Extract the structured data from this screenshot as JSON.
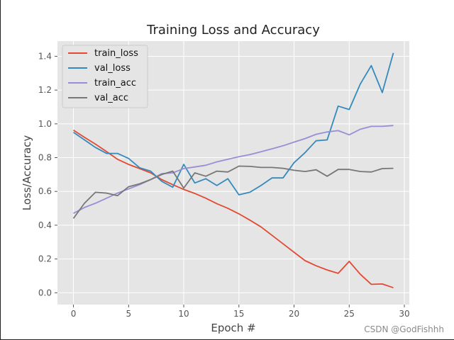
{
  "chart_data": {
    "type": "line",
    "title": "Training Loss and Accuracy",
    "xlabel": "Epoch #",
    "ylabel": "Loss/Accuracy",
    "xlim": [
      -1.45,
      30.45
    ],
    "ylim": [
      -0.07,
      1.49
    ],
    "xticks": [
      "0",
      "5",
      "10",
      "15",
      "20",
      "25",
      "30"
    ],
    "yticks": [
      "0.0",
      "0.2",
      "0.4",
      "0.6",
      "0.8",
      "1.0",
      "1.2",
      "1.4"
    ],
    "grid": true,
    "legend_position": "top-left",
    "style": "ggplot",
    "x": [
      0,
      1,
      2,
      3,
      4,
      5,
      6,
      7,
      8,
      9,
      10,
      11,
      12,
      13,
      14,
      15,
      16,
      17,
      18,
      19,
      20,
      21,
      22,
      23,
      24,
      25,
      26,
      27,
      28,
      29
    ],
    "series": [
      {
        "name": "train_loss",
        "color": "#E24A33",
        "values": [
          0.963,
          0.92,
          0.88,
          0.836,
          0.79,
          0.76,
          0.735,
          0.71,
          0.67,
          0.64,
          0.612,
          0.588,
          0.56,
          0.527,
          0.5,
          0.467,
          0.43,
          0.39,
          0.34,
          0.29,
          0.24,
          0.19,
          0.16,
          0.135,
          0.115,
          0.186,
          0.11,
          0.05,
          0.052,
          0.03
        ]
      },
      {
        "name": "val_loss",
        "color": "#348ABD",
        "values": [
          0.95,
          0.905,
          0.86,
          0.825,
          0.825,
          0.795,
          0.74,
          0.72,
          0.66,
          0.625,
          0.76,
          0.65,
          0.675,
          0.635,
          0.675,
          0.58,
          0.595,
          0.635,
          0.68,
          0.68,
          0.77,
          0.83,
          0.9,
          0.905,
          1.105,
          1.085,
          1.235,
          1.345,
          1.185,
          1.42
        ]
      },
      {
        "name": "train_acc",
        "color": "#988ED5",
        "values": [
          0.47,
          0.505,
          0.53,
          0.56,
          0.59,
          0.615,
          0.64,
          0.67,
          0.705,
          0.71,
          0.735,
          0.745,
          0.755,
          0.775,
          0.79,
          0.805,
          0.818,
          0.835,
          0.852,
          0.87,
          0.892,
          0.913,
          0.938,
          0.952,
          0.96,
          0.935,
          0.968,
          0.985,
          0.985,
          0.99
        ]
      },
      {
        "name": "val_acc",
        "color": "#777777",
        "values": [
          0.44,
          0.53,
          0.595,
          0.59,
          0.575,
          0.628,
          0.645,
          0.67,
          0.7,
          0.72,
          0.62,
          0.71,
          0.69,
          0.72,
          0.715,
          0.75,
          0.748,
          0.742,
          0.742,
          0.737,
          0.725,
          0.718,
          0.728,
          0.69,
          0.73,
          0.73,
          0.718,
          0.715,
          0.735,
          0.737
        ]
      }
    ]
  },
  "watermark": "CSDN @GodFishhh"
}
